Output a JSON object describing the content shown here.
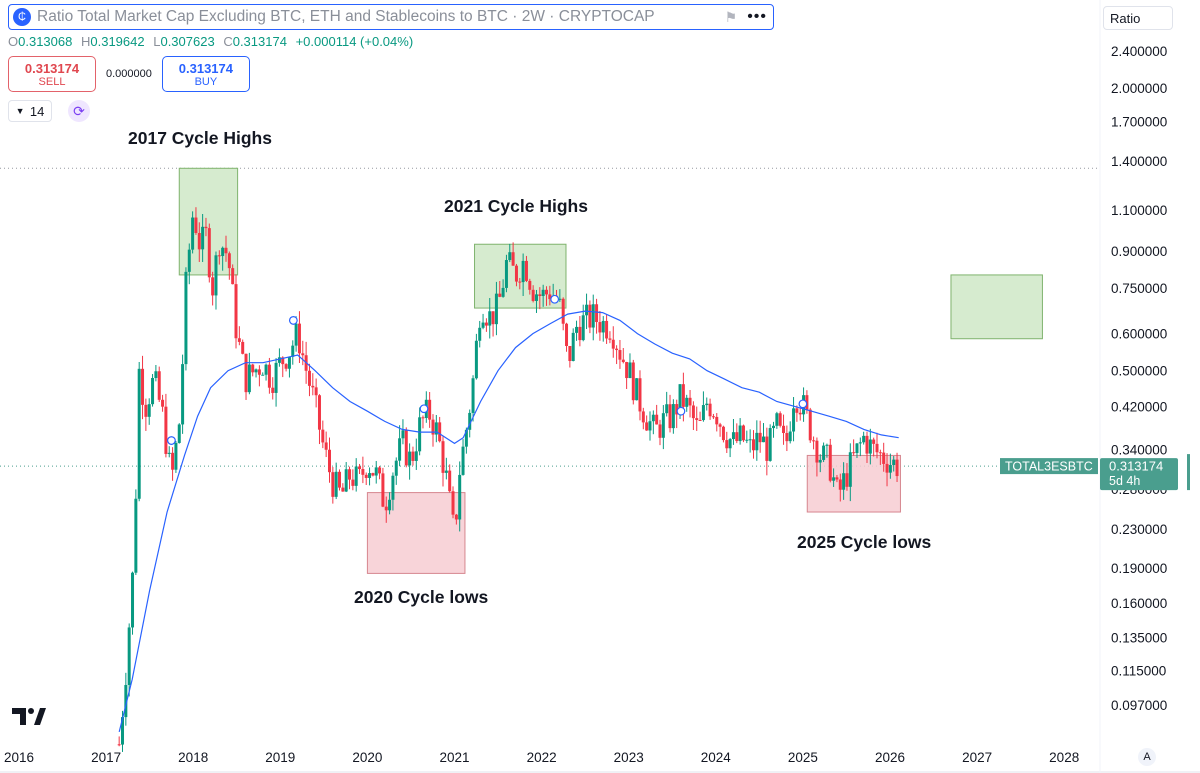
{
  "header": {
    "title": "Ratio Total Market Cap Excluding BTC, ETH and Stablecoins to BTC · 2W · CRYPTOCAP",
    "ohlc": {
      "o_label": "O",
      "o": "0.313068",
      "h_label": "H",
      "h": "0.319642",
      "l_label": "L",
      "l": "0.307623",
      "c_label": "C",
      "c": "0.313174",
      "change": "+0.000114 (+0.04%)"
    },
    "sell": {
      "price": "0.313174",
      "label": "SELL"
    },
    "spread": "0.000000",
    "buy": {
      "price": "0.313174",
      "label": "BUY"
    },
    "indicator_value": "14",
    "icons": {
      "logo": "cryptocap-logo-icon",
      "flag": "flag-icon",
      "more": "more-dots-icon",
      "chevron": "chevron-down-icon",
      "refresh": "refresh-icon"
    }
  },
  "scale_button": "Ratio",
  "price_label": {
    "symbol": "TOTAL3ESBTC",
    "value": "0.313174",
    "countdown": "5d 4h"
  },
  "auto_scale_label": "A",
  "annotations": {
    "h2017": "2017 Cycle Highs",
    "h2021": "2021 Cycle Highs",
    "l2020": "2020 Cycle lows",
    "l2025": "2025 Cycle lows"
  },
  "colors": {
    "up": "#089981",
    "down": "#f23645",
    "ma": "#2962ff",
    "zone_green": "#cfe8c7",
    "zone_red": "#f7cdd2",
    "price_tag": "#4a9e8e"
  },
  "chart_data": {
    "type": "candlestick",
    "scale": "log",
    "interval": "2W",
    "x_ticks": [
      "2016",
      "2017",
      "2018",
      "2019",
      "2020",
      "2021",
      "2022",
      "2023",
      "2024",
      "2025",
      "2026",
      "2027",
      "2028"
    ],
    "y_ticks": [
      "2.400000",
      "2.000000",
      "1.700000",
      "1.400000",
      "1.100000",
      "0.900000",
      "0.750000",
      "0.600000",
      "0.500000",
      "0.420000",
      "0.340000",
      "0.280000",
      "0.230000",
      "0.190000",
      "0.160000",
      "0.135000",
      "0.115000",
      "0.097000"
    ],
    "ylim": [
      0.088,
      2.6
    ],
    "last_close": 0.313174,
    "close_path": [
      [
        2017.15,
        0.08
      ],
      [
        2017.22,
        0.11
      ],
      [
        2017.32,
        0.2
      ],
      [
        2017.38,
        0.5
      ],
      [
        2017.45,
        0.42
      ],
      [
        2017.55,
        0.48
      ],
      [
        2017.65,
        0.4
      ],
      [
        2017.75,
        0.29
      ],
      [
        2017.85,
        0.4
      ],
      [
        2017.92,
        0.78
      ],
      [
        2018.0,
        1.1
      ],
      [
        2018.08,
        0.92
      ],
      [
        2018.15,
        0.97
      ],
      [
        2018.22,
        0.75
      ],
      [
        2018.3,
        0.95
      ],
      [
        2018.4,
        0.88
      ],
      [
        2018.5,
        0.6
      ],
      [
        2018.6,
        0.48
      ],
      [
        2018.7,
        0.5
      ],
      [
        2018.8,
        0.52
      ],
      [
        2018.9,
        0.48
      ],
      [
        2019.0,
        0.52
      ],
      [
        2019.1,
        0.55
      ],
      [
        2019.2,
        0.6
      ],
      [
        2019.3,
        0.5
      ],
      [
        2019.4,
        0.42
      ],
      [
        2019.5,
        0.34
      ],
      [
        2019.6,
        0.29
      ],
      [
        2019.7,
        0.27
      ],
      [
        2019.8,
        0.3
      ],
      [
        2019.9,
        0.29
      ],
      [
        2020.0,
        0.32
      ],
      [
        2020.1,
        0.3
      ],
      [
        2020.2,
        0.26
      ],
      [
        2020.3,
        0.31
      ],
      [
        2020.4,
        0.35
      ],
      [
        2020.5,
        0.32
      ],
      [
        2020.6,
        0.38
      ],
      [
        2020.7,
        0.41
      ],
      [
        2020.8,
        0.37
      ],
      [
        2020.9,
        0.3
      ],
      [
        2021.0,
        0.22
      ],
      [
        2021.05,
        0.3
      ],
      [
        2021.1,
        0.34
      ],
      [
        2021.2,
        0.45
      ],
      [
        2021.3,
        0.7
      ],
      [
        2021.4,
        0.65
      ],
      [
        2021.5,
        0.68
      ],
      [
        2021.6,
        0.85
      ],
      [
        2021.7,
        0.8
      ],
      [
        2021.8,
        0.86
      ],
      [
        2021.9,
        0.75
      ],
      [
        2022.0,
        0.72
      ],
      [
        2022.1,
        0.74
      ],
      [
        2022.2,
        0.7
      ],
      [
        2022.3,
        0.52
      ],
      [
        2022.4,
        0.62
      ],
      [
        2022.5,
        0.64
      ],
      [
        2022.6,
        0.65
      ],
      [
        2022.7,
        0.63
      ],
      [
        2022.8,
        0.62
      ],
      [
        2022.9,
        0.55
      ],
      [
        2023.0,
        0.5
      ],
      [
        2023.1,
        0.44
      ],
      [
        2023.2,
        0.4
      ],
      [
        2023.3,
        0.37
      ],
      [
        2023.4,
        0.39
      ],
      [
        2023.5,
        0.4
      ],
      [
        2023.6,
        0.44
      ],
      [
        2023.7,
        0.41
      ],
      [
        2023.8,
        0.37
      ],
      [
        2023.9,
        0.43
      ],
      [
        2024.0,
        0.41
      ],
      [
        2024.1,
        0.37
      ],
      [
        2024.2,
        0.35
      ],
      [
        2024.3,
        0.36
      ],
      [
        2024.4,
        0.34
      ],
      [
        2024.5,
        0.36
      ],
      [
        2024.6,
        0.34
      ],
      [
        2024.7,
        0.38
      ],
      [
        2024.8,
        0.34
      ],
      [
        2024.9,
        0.45
      ],
      [
        2025.0,
        0.42
      ],
      [
        2025.1,
        0.37
      ],
      [
        2025.2,
        0.33
      ],
      [
        2025.3,
        0.32
      ],
      [
        2025.4,
        0.27
      ],
      [
        2025.5,
        0.3
      ],
      [
        2025.6,
        0.33
      ],
      [
        2025.7,
        0.36
      ],
      [
        2025.8,
        0.34
      ],
      [
        2025.9,
        0.33
      ],
      [
        2026.0,
        0.32
      ],
      [
        2026.1,
        0.313
      ]
    ],
    "moving_average_path": [
      [
        2017.15,
        0.085
      ],
      [
        2017.3,
        0.11
      ],
      [
        2017.5,
        0.17
      ],
      [
        2017.7,
        0.25
      ],
      [
        2017.9,
        0.33
      ],
      [
        2018.05,
        0.4
      ],
      [
        2018.2,
        0.46
      ],
      [
        2018.4,
        0.5
      ],
      [
        2018.6,
        0.52
      ],
      [
        2018.8,
        0.52
      ],
      [
        2019.0,
        0.53
      ],
      [
        2019.2,
        0.54
      ],
      [
        2019.4,
        0.5
      ],
      [
        2019.6,
        0.46
      ],
      [
        2019.8,
        0.43
      ],
      [
        2020.0,
        0.41
      ],
      [
        2020.2,
        0.39
      ],
      [
        2020.4,
        0.375
      ],
      [
        2020.6,
        0.37
      ],
      [
        2020.8,
        0.37
      ],
      [
        2021.0,
        0.35
      ],
      [
        2021.1,
        0.36
      ],
      [
        2021.3,
        0.43
      ],
      [
        2021.5,
        0.5
      ],
      [
        2021.7,
        0.56
      ],
      [
        2021.9,
        0.6
      ],
      [
        2022.1,
        0.63
      ],
      [
        2022.3,
        0.66
      ],
      [
        2022.5,
        0.67
      ],
      [
        2022.7,
        0.665
      ],
      [
        2022.9,
        0.64
      ],
      [
        2023.1,
        0.6
      ],
      [
        2023.3,
        0.57
      ],
      [
        2023.5,
        0.545
      ],
      [
        2023.7,
        0.53
      ],
      [
        2023.9,
        0.5
      ],
      [
        2024.1,
        0.48
      ],
      [
        2024.3,
        0.46
      ],
      [
        2024.5,
        0.45
      ],
      [
        2024.7,
        0.43
      ],
      [
        2024.9,
        0.42
      ],
      [
        2025.1,
        0.41
      ],
      [
        2025.3,
        0.4
      ],
      [
        2025.5,
        0.39
      ],
      [
        2025.7,
        0.375
      ],
      [
        2025.9,
        0.365
      ],
      [
        2026.1,
        0.36
      ]
    ],
    "zones": [
      {
        "name": "2017 highs",
        "x0": 2017.84,
        "x1": 2018.51,
        "y0": 0.8,
        "y1": 1.35,
        "color": "green"
      },
      {
        "name": "2021 highs",
        "x0": 2021.23,
        "x1": 2022.28,
        "y0": 0.68,
        "y1": 0.93,
        "color": "green"
      },
      {
        "name": "2020 lows",
        "x0": 2020.0,
        "x1": 2021.12,
        "y0": 0.185,
        "y1": 0.275,
        "color": "red"
      },
      {
        "name": "2025 lows",
        "x0": 2025.05,
        "x1": 2026.12,
        "y0": 0.25,
        "y1": 0.33,
        "color": "red"
      },
      {
        "name": "target",
        "x0": 2026.7,
        "x1": 2027.75,
        "y0": 0.585,
        "y1": 0.8,
        "color": "green"
      }
    ],
    "markers": [
      [
        2017.75,
        0.355
      ],
      [
        2019.15,
        0.64
      ],
      [
        2020.65,
        0.415
      ],
      [
        2022.15,
        0.71
      ],
      [
        2023.6,
        0.41
      ],
      [
        2025.0,
        0.425
      ]
    ]
  }
}
